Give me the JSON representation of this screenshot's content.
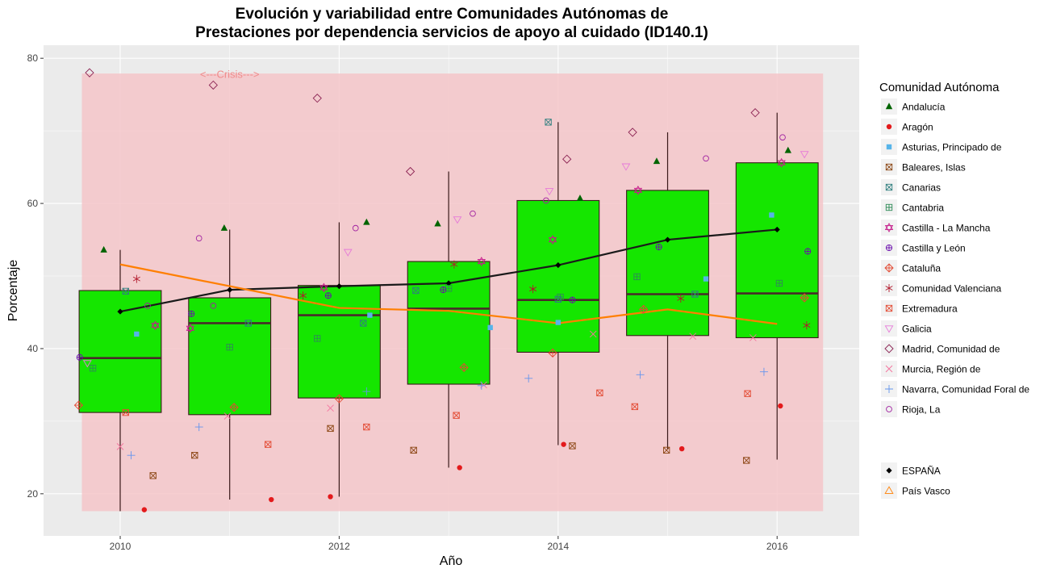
{
  "title_line1": "Evolución y variabilidad entre Comunidades Autónomas de",
  "title_line2": "Prestaciones por dependencia servicios de apoyo al cuidado (ID140.1)",
  "annotation": "<---Crisis--->",
  "legend_title": "Comunidad Autónoma",
  "chart_data": {
    "type": "box",
    "xlabel": "Año",
    "ylabel": "Porcentaje",
    "x_ticks": [
      2010,
      2012,
      2014,
      2016
    ],
    "y_ticks": [
      20,
      40,
      60,
      80
    ],
    "xlim": [
      2009.3,
      2016.75
    ],
    "ylim": [
      14.2,
      81.8
    ],
    "crisis_band": {
      "x": [
        2009.65,
        2016.42
      ],
      "y": [
        17.6,
        77.9
      ]
    },
    "box_color": "#15e600",
    "band_color": "#f4c5c9",
    "boxes": [
      {
        "year": 2010,
        "min": 17.6,
        "q1": 31.2,
        "median": 38.7,
        "q3": 48.0,
        "max": 53.6
      },
      {
        "year": 2011,
        "min": 19.2,
        "q1": 30.9,
        "median": 43.5,
        "q3": 47.0,
        "max": 56.4
      },
      {
        "year": 2012,
        "min": 19.6,
        "q1": 33.2,
        "median": 44.6,
        "q3": 48.7,
        "max": 57.4
      },
      {
        "year": 2013,
        "min": 23.6,
        "q1": 35.1,
        "median": 45.5,
        "q3": 52.0,
        "max": 64.4
      },
      {
        "year": 2014,
        "min": 26.7,
        "q1": 39.5,
        "median": 46.7,
        "q3": 60.4,
        "max": 71.2
      },
      {
        "year": 2015,
        "min": 26.1,
        "q1": 41.8,
        "median": 47.5,
        "q3": 61.8,
        "max": 69.8
      },
      {
        "year": 2016,
        "min": 24.7,
        "q1": 41.5,
        "median": 47.6,
        "q3": 65.6,
        "max": 72.5
      }
    ],
    "series_lines": [
      {
        "name": "ESPAÑA",
        "color": "#1a1a1a",
        "x": [
          2010,
          2011,
          2012,
          2013,
          2014,
          2015,
          2016
        ],
        "y": [
          45.1,
          48.1,
          48.6,
          49.0,
          51.5,
          55.0,
          56.4
        ]
      },
      {
        "name": "País Vasco",
        "color": "#ff7f00",
        "x": [
          2010,
          2011,
          2012,
          2013,
          2014,
          2015,
          2016
        ],
        "y": [
          51.6,
          48.6,
          45.6,
          45.2,
          43.5,
          45.4,
          43.4
        ]
      }
    ],
    "communities": [
      {
        "name": "Andalucía",
        "shape": "triangle-filled",
        "color": "#006400",
        "points": [
          [
            2009.85,
            53.6
          ],
          [
            2010.95,
            56.6
          ],
          [
            2012.25,
            57.4
          ],
          [
            2012.9,
            57.2
          ],
          [
            2014.2,
            60.7
          ],
          [
            2014.9,
            65.8
          ],
          [
            2016.1,
            67.3
          ]
        ]
      },
      {
        "name": "Aragón",
        "shape": "circle-filled",
        "color": "#e31a1c",
        "points": [
          [
            2010.22,
            17.8
          ],
          [
            2011.38,
            19.2
          ],
          [
            2011.92,
            19.6
          ],
          [
            2013.1,
            23.6
          ],
          [
            2014.05,
            26.8
          ],
          [
            2015.13,
            26.2
          ],
          [
            2016.03,
            32.1
          ]
        ]
      },
      {
        "name": "Asturias, Principado de",
        "shape": "square-filled",
        "color": "#56b4e9",
        "points": [
          [
            2010.15,
            42.0
          ],
          [
            2012.28,
            44.6
          ],
          [
            2013.38,
            42.9
          ],
          [
            2014.0,
            43.6
          ],
          [
            2015.35,
            49.6
          ],
          [
            2015.95,
            58.4
          ]
        ]
      },
      {
        "name": "Baleares, Islas",
        "shape": "square-x",
        "color": "#8b4513",
        "points": [
          [
            2010.3,
            22.5
          ],
          [
            2010.68,
            25.3
          ],
          [
            2011.92,
            29.0
          ],
          [
            2012.68,
            26.0
          ],
          [
            2014.13,
            26.6
          ],
          [
            2014.99,
            26.0
          ],
          [
            2015.72,
            24.6
          ]
        ]
      },
      {
        "name": "Canarias",
        "shape": "square-x",
        "color": "#2f7f7f",
        "points": [
          [
            2010.05,
            47.9
          ],
          [
            2011.17,
            43.5
          ],
          [
            2012.22,
            43.5
          ],
          [
            2012.7,
            48.0
          ],
          [
            2014.0,
            46.8
          ],
          [
            2013.91,
            71.2
          ],
          [
            2015.25,
            47.5
          ]
        ]
      },
      {
        "name": "Cantabria",
        "shape": "square-plus",
        "color": "#2e8b57",
        "points": [
          [
            2009.75,
            37.3
          ],
          [
            2011.0,
            40.2
          ],
          [
            2011.8,
            41.4
          ],
          [
            2013.0,
            48.3
          ],
          [
            2014.02,
            47.1
          ],
          [
            2014.72,
            49.9
          ],
          [
            2016.02,
            49.0
          ]
        ]
      },
      {
        "name": "Castilla - La Mancha",
        "shape": "star-david",
        "color": "#c51b8a",
        "points": [
          [
            2010.32,
            43.2
          ],
          [
            2010.64,
            42.8
          ],
          [
            2011.86,
            48.4
          ],
          [
            2013.3,
            52.0
          ],
          [
            2013.95,
            55.0
          ],
          [
            2014.73,
            61.8
          ],
          [
            2016.04,
            65.6
          ]
        ]
      },
      {
        "name": "Castilla y León",
        "shape": "circle-plus",
        "color": "#6a0dad",
        "points": [
          [
            2009.63,
            38.8
          ],
          [
            2010.65,
            44.8
          ],
          [
            2011.9,
            47.3
          ],
          [
            2012.95,
            48.1
          ],
          [
            2014.13,
            46.7
          ],
          [
            2014.92,
            54.0
          ],
          [
            2016.28,
            53.4
          ]
        ]
      },
      {
        "name": "Cataluña",
        "shape": "diamond-plus",
        "color": "#e34a33",
        "points": [
          [
            2009.62,
            32.2
          ],
          [
            2011.04,
            31.9
          ],
          [
            2012.0,
            33.1
          ],
          [
            2013.14,
            37.4
          ],
          [
            2013.95,
            39.4
          ],
          [
            2014.78,
            45.4
          ],
          [
            2016.25,
            47.0
          ]
        ]
      },
      {
        "name": "Comunidad Valenciana",
        "shape": "asterisk",
        "color": "#b2182b",
        "points": [
          [
            2010.15,
            49.6
          ],
          [
            2011.67,
            47.3
          ],
          [
            2013.05,
            51.6
          ],
          [
            2013.77,
            48.2
          ],
          [
            2015.12,
            46.9
          ],
          [
            2016.27,
            43.2
          ]
        ]
      },
      {
        "name": "Extremadura",
        "shape": "square-x",
        "color": "#e34a33",
        "points": [
          [
            2010.05,
            31.2
          ],
          [
            2011.35,
            26.8
          ],
          [
            2012.25,
            29.2
          ],
          [
            2013.07,
            30.8
          ],
          [
            2014.38,
            33.9
          ],
          [
            2014.7,
            32.0
          ],
          [
            2015.73,
            33.8
          ]
        ]
      },
      {
        "name": "Galicia",
        "shape": "triangle-down-open",
        "color": "#e67ad8",
        "points": [
          [
            2009.7,
            38.0
          ],
          [
            2012.08,
            53.3
          ],
          [
            2013.08,
            57.8
          ],
          [
            2013.92,
            61.7
          ],
          [
            2014.62,
            65.1
          ],
          [
            2016.25,
            66.8
          ]
        ]
      },
      {
        "name": "Madrid, Comunidad de",
        "shape": "diamond-open",
        "color": "#8b2252",
        "points": [
          [
            2009.72,
            78.0
          ],
          [
            2010.85,
            76.3
          ],
          [
            2011.8,
            74.5
          ],
          [
            2012.65,
            64.4
          ],
          [
            2014.08,
            66.1
          ],
          [
            2014.68,
            69.8
          ],
          [
            2015.8,
            72.5
          ]
        ]
      },
      {
        "name": "Murcia, Región de",
        "shape": "x",
        "color": "#f4749e",
        "points": [
          [
            2010.0,
            26.5
          ],
          [
            2010.98,
            30.7
          ],
          [
            2011.92,
            31.8
          ],
          [
            2013.32,
            35.0
          ],
          [
            2014.32,
            42.0
          ],
          [
            2015.23,
            41.7
          ],
          [
            2015.78,
            41.5
          ]
        ]
      },
      {
        "name": "Navarra, Comunidad Foral de",
        "shape": "plus",
        "color": "#6495ed",
        "points": [
          [
            2010.1,
            25.3
          ],
          [
            2010.72,
            29.2
          ],
          [
            2012.25,
            34.1
          ],
          [
            2013.3,
            34.9
          ],
          [
            2013.73,
            35.9
          ],
          [
            2014.75,
            36.4
          ],
          [
            2015.88,
            36.8
          ]
        ]
      },
      {
        "name": "Rioja, La",
        "shape": "circle-open",
        "color": "#a020a0",
        "points": [
          [
            2010.25,
            45.9
          ],
          [
            2010.72,
            55.2
          ],
          [
            2010.85,
            45.9
          ],
          [
            2012.15,
            56.6
          ],
          [
            2013.22,
            58.6
          ],
          [
            2013.89,
            60.4
          ],
          [
            2015.35,
            66.2
          ],
          [
            2016.05,
            69.1
          ]
        ]
      }
    ],
    "legend_extra": [
      {
        "name": "ESPAÑA",
        "shape": "diamond-filled",
        "color": "#000000"
      },
      {
        "name": "País Vasco",
        "shape": "triangle-open",
        "color": "#ff7f00"
      }
    ]
  }
}
